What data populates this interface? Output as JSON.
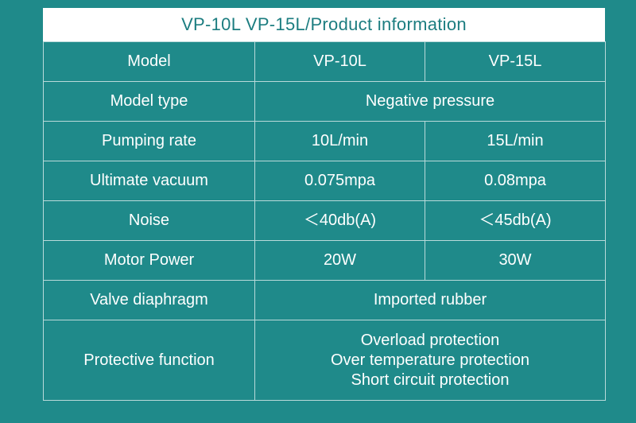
{
  "title": "VP-10L    VP-15L/Product information",
  "table": {
    "header": {
      "label": "Model",
      "col1": "VP-10L",
      "col2": "VP-15L"
    },
    "model_type": {
      "label": "Model type",
      "value": "Negative pressure"
    },
    "pumping_rate": {
      "label": "Pumping rate",
      "col1": "10L/min",
      "col2": "15L/min"
    },
    "ultimate_vacuum": {
      "label": "Ultimate vacuum",
      "col1": "0.075mpa",
      "col2": "0.08mpa"
    },
    "noise": {
      "label": "Noise",
      "col1": "＜40db(A)",
      "col2": "＜45db(A)"
    },
    "motor_power": {
      "label": "Motor Power",
      "col1": "20W",
      "col2": "30W"
    },
    "valve_diaphragm": {
      "label": "Valve diaphragm",
      "value": "Imported rubber"
    },
    "protective_function": {
      "label": "Protective function",
      "lines": [
        "Overload protection",
        "Over temperature protection",
        "Short circuit protection"
      ]
    }
  },
  "colors": {
    "background": "#1f8a8a",
    "title_text": "#1c7d80",
    "grid": "#b9dada"
  }
}
